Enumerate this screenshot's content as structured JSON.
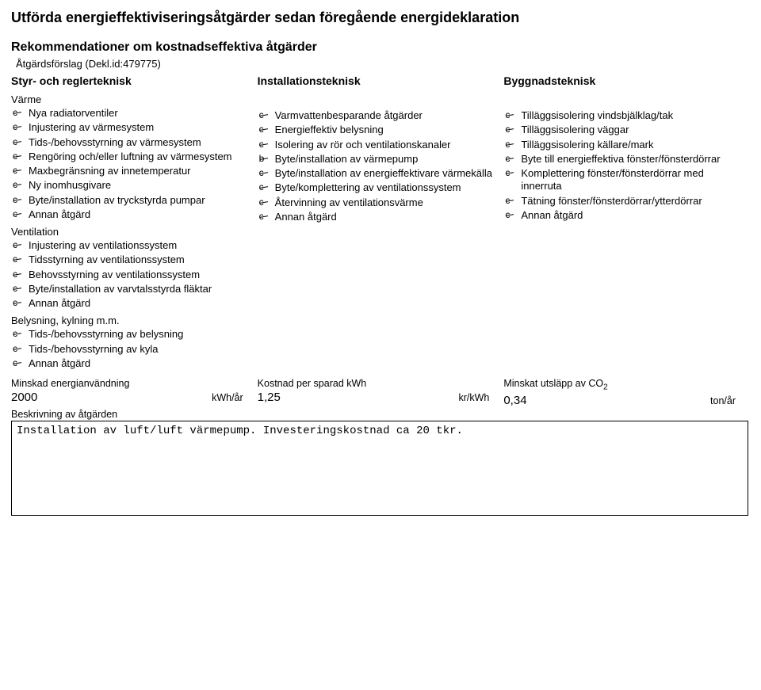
{
  "title": "Utförda energieffektiviseringsåtgärder sedan föregående energideklaration",
  "subtitle": "Rekommendationer om kostnadseffektiva åtgärder",
  "proposal": "Åtgärdsförslag (Dekl.id:479775)",
  "col_heads": {
    "left": "Styr- och reglerteknisk",
    "mid": "Installationsteknisk",
    "right": "Byggnadsteknisk"
  },
  "groups": {
    "varme": "Värme",
    "ventilation": "Ventilation",
    "belysning": "Belysning, kylning m.m."
  },
  "left": {
    "varme": [
      "Nya radiatorventiler",
      "Injustering av värmesystem",
      "Tids-/behovsstyrning av värmesystem",
      "Rengöring och/eller luftning av värmesystem",
      "Maxbegränsning av innetemperatur",
      "Ny inomhusgivare",
      "Byte/installation av tryckstyrda pumpar",
      "Annan åtgärd"
    ],
    "ventilation": [
      "Injustering av ventilationssystem",
      "Tidsstyrning av ventilationssystem",
      "Behovsstyrning av ventilationssystem",
      "Byte/installation av varvtalsstyrda fläktar",
      "Annan åtgärd"
    ],
    "belysning": [
      "Tids-/behovsstyrning av belysning",
      "Tids-/behovsstyrning av kyla",
      "Annan åtgärd"
    ]
  },
  "mid": [
    "Varmvattenbesparande åtgärder",
    "Energieffektiv belysning",
    "Isolering av rör och ventilationskanaler",
    "Byte/installation av värmepump",
    "Byte/installation av energieffektivare värmekälla",
    "Byte/komplettering av ventilationssystem",
    "Återvinning av ventilationsvärme",
    "Annan åtgärd"
  ],
  "mid_selected_index": 3,
  "right": [
    "Tilläggsisolering vindsbjälklag/tak",
    "Tilläggsisolering väggar",
    "Tilläggsisolering källare/mark",
    "Byte till energieffektiva fönster/fönsterdörrar",
    "Komplettering fönster/fönsterdörrar med innerruta",
    "Tätning fönster/fönsterdörrar/ytterdörrar",
    "Annan åtgärd"
  ],
  "bottom": {
    "c1_label": "Minskad energianvändning",
    "c1_value": "2000",
    "c1_unit": "kWh/år",
    "c2_label": "Kostnad per sparad kWh",
    "c2_value": "1,25",
    "c2_unit": "kr/kWh",
    "c3_label_pre": "Minskat utsläpp av CO",
    "c3_label_sub": "2",
    "c3_value": "0,34",
    "c3_unit": "ton/år"
  },
  "desc_label": "Beskrivning av åtgärden",
  "desc_text": "Installation av luft/luft värmepump. Investeringskostnad ca 20 tkr."
}
